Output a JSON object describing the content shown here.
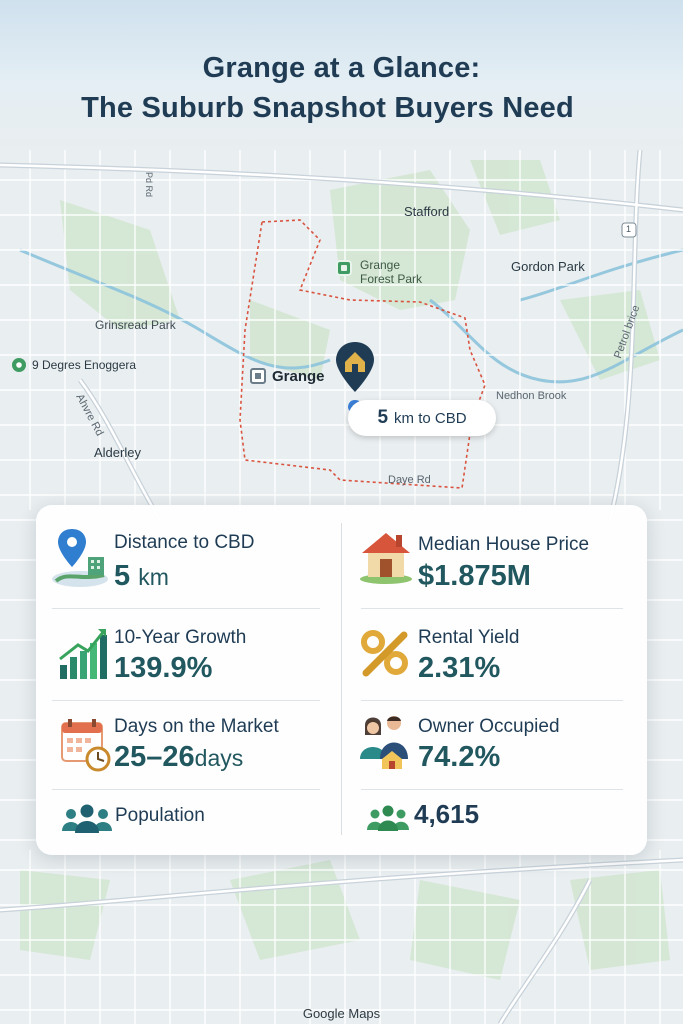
{
  "header": {
    "title_line1": "Grange at a Glance:",
    "title_line2": "The Suburb Snapshot Buyers Need"
  },
  "map": {
    "labels": {
      "stafford": "Stafford",
      "gordon_park": "Gordon Park",
      "grange_forest_park_1": "Grange",
      "grange_forest_park_2": "Forest Park",
      "grinsread_park": "Grinsread Park",
      "nine_degrees": "9 Degres Enoggera",
      "alderley": "Alderley",
      "grange": "Grange",
      "daye_rd": "Daye Rd",
      "nedhon_brook": "Nedhon Brook",
      "ahvre_rd": "Ahvre Rd",
      "petrol_brice": "Petrol brice",
      "pd_rd": "Pd Rd"
    },
    "route_badge": "1",
    "cbd_callout": {
      "value": "5",
      "rest": "km to CBD"
    },
    "colors": {
      "boundary": "#d9533f",
      "water": "#6fb6d6",
      "parks": "#cfe6cf",
      "roads": "#ffffff",
      "pin": "#1f3c54"
    }
  },
  "stats": {
    "distance": {
      "label": "Distance to CBD",
      "value": "5",
      "unit": "km"
    },
    "median": {
      "label": "Median House Price",
      "value": "$1.875M"
    },
    "growth": {
      "label": "10-Year Growth",
      "value": "139.9%"
    },
    "rental": {
      "label": "Rental Yield",
      "value": "2.31%"
    },
    "days": {
      "label": "Days on the Market",
      "value": "25–26",
      "unit": "days"
    },
    "owner": {
      "label": "Owner Occupied",
      "value": "74.2%"
    },
    "population": {
      "label": "Population",
      "value": "4,615"
    }
  },
  "footer": {
    "attribution": "Google Maps"
  }
}
